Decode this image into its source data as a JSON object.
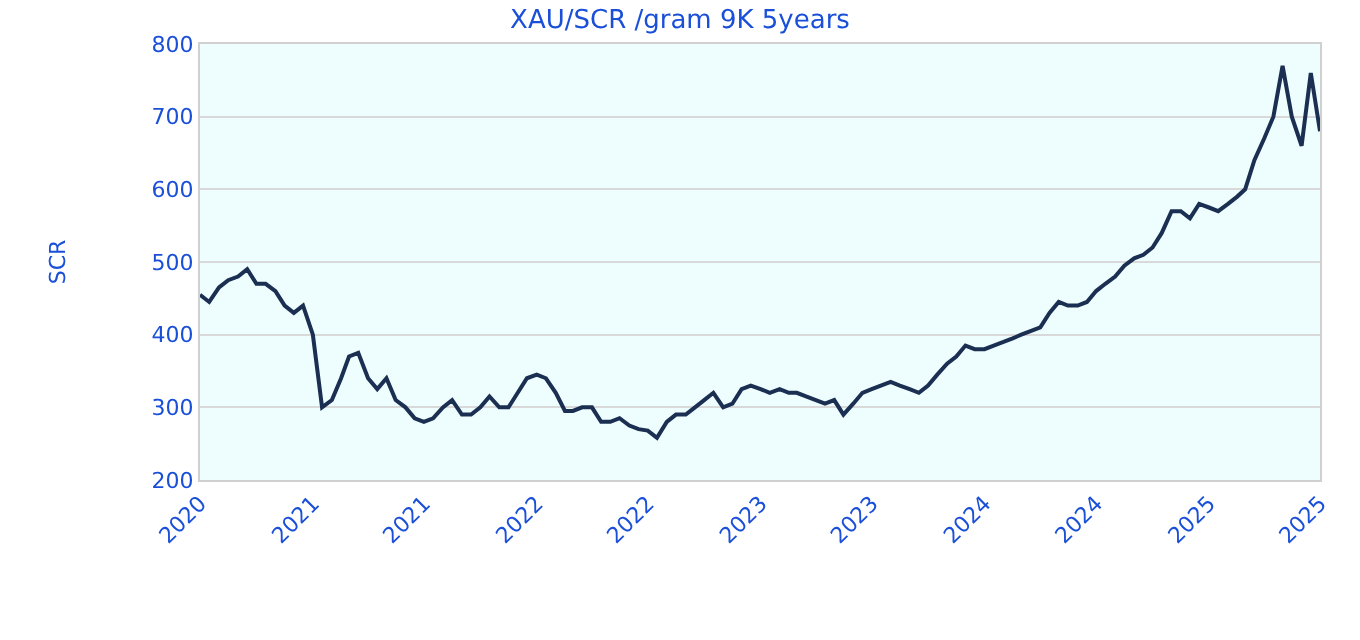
{
  "chart_data": {
    "type": "line",
    "title": "XAU/SCR /gram 9K 5years",
    "ylabel": "SCR",
    "x": [
      "2020-07-01",
      "2020-07-16",
      "2020-08-01",
      "2020-08-16",
      "2020-09-01",
      "2020-09-16",
      "2020-10-01",
      "2020-10-16",
      "2020-11-01",
      "2020-11-16",
      "2020-12-01",
      "2020-12-16",
      "2021-01-01",
      "2021-01-16",
      "2021-02-01",
      "2021-02-16",
      "2021-03-01",
      "2021-03-16",
      "2021-04-01",
      "2021-04-16",
      "2021-05-01",
      "2021-05-16",
      "2021-06-01",
      "2021-06-16",
      "2021-07-01",
      "2021-07-16",
      "2021-08-01",
      "2021-08-16",
      "2021-09-01",
      "2021-09-16",
      "2021-10-01",
      "2021-10-16",
      "2021-11-01",
      "2021-11-16",
      "2021-12-01",
      "2021-12-16",
      "2022-01-01",
      "2022-01-16",
      "2022-02-01",
      "2022-02-16",
      "2022-03-01",
      "2022-03-16",
      "2022-04-01",
      "2022-04-16",
      "2022-05-01",
      "2022-05-16",
      "2022-06-01",
      "2022-06-16",
      "2022-07-01",
      "2022-07-16",
      "2022-08-01",
      "2022-08-16",
      "2022-09-01",
      "2022-09-16",
      "2022-10-01",
      "2022-10-16",
      "2022-11-01",
      "2022-11-16",
      "2022-12-01",
      "2022-12-16",
      "2023-01-01",
      "2023-01-16",
      "2023-02-01",
      "2023-02-16",
      "2023-03-01",
      "2023-03-16",
      "2023-04-01",
      "2023-04-16",
      "2023-05-01",
      "2023-05-16",
      "2023-06-01",
      "2023-06-16",
      "2023-07-01",
      "2023-07-16",
      "2023-08-01",
      "2023-08-16",
      "2023-09-01",
      "2023-09-16",
      "2023-10-01",
      "2023-10-16",
      "2023-11-01",
      "2023-11-16",
      "2023-12-01",
      "2023-12-16",
      "2024-01-01",
      "2024-01-16",
      "2024-02-01",
      "2024-02-16",
      "2024-03-01",
      "2024-03-16",
      "2024-04-01",
      "2024-04-16",
      "2024-05-01",
      "2024-05-16",
      "2024-06-01",
      "2024-06-16",
      "2024-07-01",
      "2024-07-16",
      "2024-08-01",
      "2024-08-16",
      "2024-09-01",
      "2024-09-16",
      "2024-10-01",
      "2024-10-16",
      "2024-11-01",
      "2024-11-16",
      "2024-12-01",
      "2024-12-16",
      "2025-01-01",
      "2025-01-16",
      "2025-02-01",
      "2025-02-16",
      "2025-03-01",
      "2025-03-16",
      "2025-04-01",
      "2025-04-16",
      "2025-05-01",
      "2025-05-16",
      "2025-06-01",
      "2025-06-16",
      "2025-07-01"
    ],
    "series": [
      {
        "color": "#1b2f52",
        "values": [
          455,
          445,
          465,
          475,
          480,
          490,
          470,
          470,
          460,
          440,
          430,
          440,
          400,
          300,
          310,
          340,
          370,
          375,
          340,
          325,
          340,
          310,
          300,
          285,
          280,
          285,
          300,
          310,
          290,
          290,
          300,
          315,
          300,
          300,
          320,
          340,
          345,
          340,
          320,
          295,
          295,
          300,
          300,
          280,
          280,
          285,
          275,
          270,
          268,
          258,
          280,
          290,
          290,
          300,
          310,
          320,
          300,
          305,
          325,
          330,
          325,
          320,
          325,
          320,
          320,
          315,
          310,
          305,
          310,
          290,
          305,
          320,
          325,
          330,
          335,
          330,
          325,
          320,
          330,
          345,
          360,
          370,
          385,
          380,
          380,
          385,
          390,
          395,
          400,
          405,
          410,
          430,
          445,
          440,
          440,
          445,
          460,
          470,
          480,
          495,
          505,
          510,
          520,
          540,
          570,
          570,
          560,
          580,
          575,
          570,
          580,
          590,
          600,
          640,
          670,
          700,
          770,
          700,
          660,
          760,
          680
        ]
      }
    ],
    "xlim": [
      "2020-07-01",
      "2025-07-01"
    ],
    "xticks": [
      {
        "value": "2020-07-01",
        "label": "2020"
      },
      {
        "value": "2021-01-01",
        "label": "2021"
      },
      {
        "value": "2021-07-01",
        "label": "2021"
      },
      {
        "value": "2022-01-01",
        "label": "2022"
      },
      {
        "value": "2022-07-01",
        "label": "2022"
      },
      {
        "value": "2023-01-01",
        "label": "2023"
      },
      {
        "value": "2023-07-01",
        "label": "2023"
      },
      {
        "value": "2024-01-01",
        "label": "2024"
      },
      {
        "value": "2024-07-01",
        "label": "2024"
      },
      {
        "value": "2025-01-01",
        "label": "2025"
      },
      {
        "value": "2025-07-01",
        "label": "2025"
      }
    ],
    "ylim": [
      200,
      800
    ],
    "yticks": [
      200,
      300,
      400,
      500,
      600,
      700,
      800
    ],
    "grid": "y",
    "marker": "none",
    "line_style": "solid"
  }
}
